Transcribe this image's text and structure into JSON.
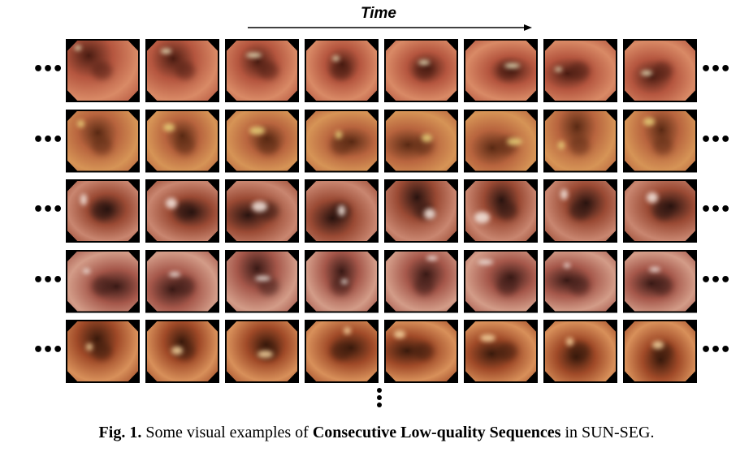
{
  "header": {
    "time_label": "Time"
  },
  "grid": {
    "rows": 5,
    "columns": 8,
    "row_tones": [
      {
        "base": "#b5563f",
        "mid": "#d98a66",
        "dark": "#4a1c12",
        "glare": "#f2f0c8"
      },
      {
        "base": "#b8643e",
        "mid": "#d69456",
        "dark": "#5a2a14",
        "glare": "#e8d27a"
      },
      {
        "base": "#9a4a34",
        "mid": "#c98670",
        "dark": "#2a1410",
        "glare": "#f4e6de"
      },
      {
        "base": "#a5574a",
        "mid": "#d39c88",
        "dark": "#3a1a16",
        "glare": "#f3ece6"
      },
      {
        "base": "#a04a28",
        "mid": "#d8905a",
        "dark": "#3a1a0c",
        "glare": "#f6d6a0"
      }
    ]
  },
  "ellipsis": {
    "horizontal": "•••"
  },
  "caption": {
    "fig_label": "Fig. 1.",
    "text_before": " Some visual examples of ",
    "bold_phrase": "Consecutive Low-quality Sequences",
    "text_after": " in SUN-SEG."
  }
}
